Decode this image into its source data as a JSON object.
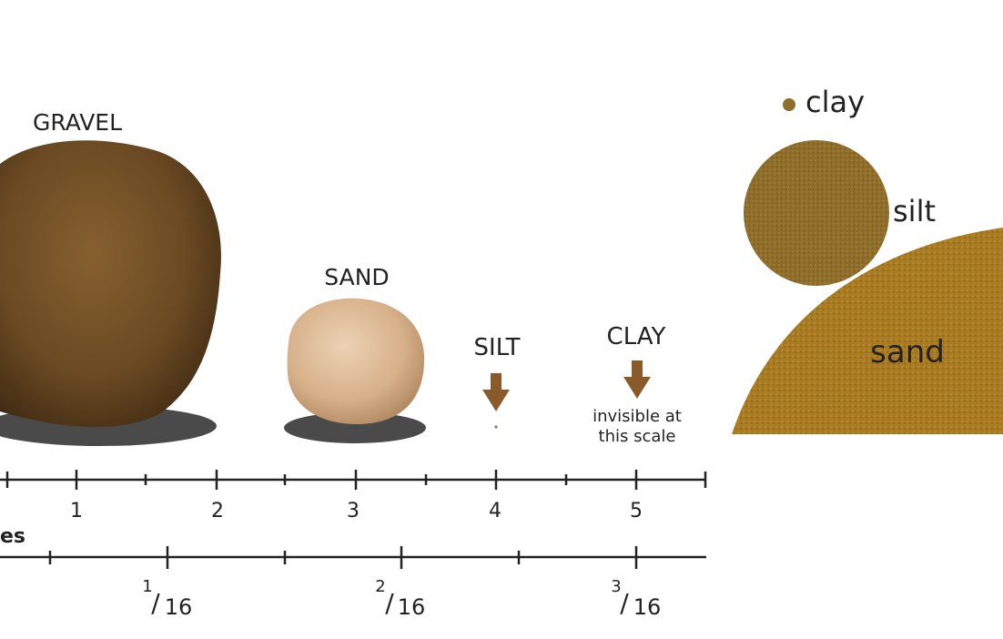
{
  "particles": {
    "gravel": "GRAVEL",
    "sand": "SAND",
    "silt": "SILT",
    "clay": "CLAY",
    "clay_note_line1": "invisible at",
    "clay_note_line2": "this scale"
  },
  "scale_mm": {
    "ticks": [
      "1",
      "2",
      "3",
      "4",
      "5"
    ]
  },
  "scale_inches": {
    "label": "es",
    "fractions": [
      {
        "num": "1",
        "den": "16"
      },
      {
        "num": "2",
        "den": "16"
      },
      {
        "num": "3",
        "den": "16"
      }
    ]
  },
  "magnified": {
    "clay": "clay",
    "silt": "silt",
    "sand": "sand"
  },
  "colors": {
    "gravel": "#6b4a23",
    "sand_grain": "#d9b48f",
    "shadow": "#4a4a4a",
    "arrow": "#8a5a2b",
    "magnified_fill": "#a87a22",
    "silt_fill": "#8f6d2a"
  }
}
